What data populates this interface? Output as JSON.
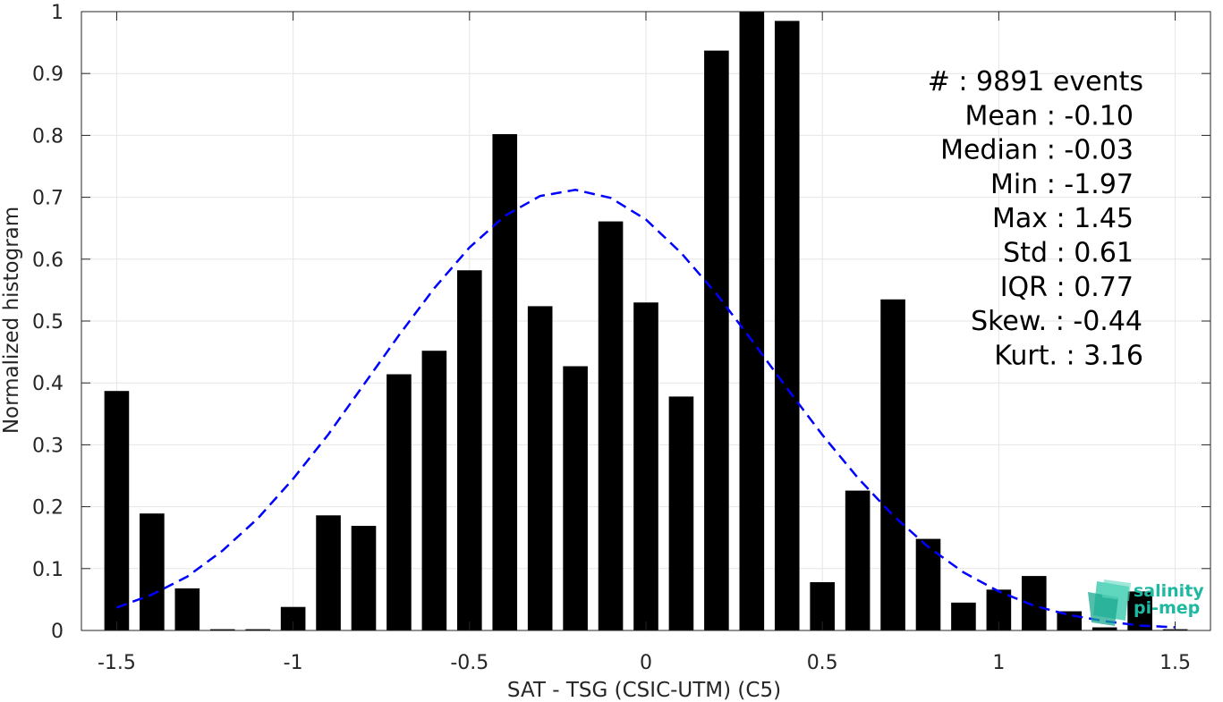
{
  "chart_data": {
    "type": "bar",
    "xlabel": "SAT - TSG (CSIC-UTM) (C5)",
    "ylabel": "Normalized histogram",
    "xlim": [
      -1.6,
      1.6
    ],
    "ylim": [
      0,
      1
    ],
    "grid": true,
    "xticks": [
      "-1.5",
      "-1",
      "-0.5",
      "0",
      "0.5",
      "1",
      "1.5"
    ],
    "yticks": [
      "0",
      "0.1",
      "0.2",
      "0.3",
      "0.4",
      "0.5",
      "0.6",
      "0.7",
      "0.8",
      "0.9",
      "1"
    ],
    "bar_width": 0.07,
    "bars": {
      "x": [
        -1.5,
        -1.4,
        -1.3,
        -1.2,
        -1.1,
        -1.0,
        -0.9,
        -0.8,
        -0.7,
        -0.6,
        -0.5,
        -0.4,
        -0.3,
        -0.2,
        -0.1,
        0.0,
        0.1,
        0.2,
        0.3,
        0.4,
        0.5,
        0.6,
        0.7,
        0.8,
        0.9,
        1.0,
        1.1,
        1.2,
        1.3,
        1.4,
        1.5
      ],
      "values": [
        0.387,
        0.189,
        0.068,
        0.002,
        0.002,
        0.038,
        0.186,
        0.169,
        0.414,
        0.452,
        0.582,
        0.802,
        0.524,
        0.427,
        0.661,
        0.53,
        0.378,
        0.937,
        1.0,
        0.985,
        0.078,
        0.226,
        0.535,
        0.148,
        0.045,
        0.066,
        0.088,
        0.031,
        0.005,
        0.063,
        0.002
      ],
      "color": "#000000"
    },
    "fit_curve": {
      "style": "dashed",
      "color": "#0000ff",
      "x": [
        -1.5,
        -1.4,
        -1.3,
        -1.2,
        -1.1,
        -1.0,
        -0.9,
        -0.8,
        -0.7,
        -0.6,
        -0.5,
        -0.4,
        -0.3,
        -0.2,
        -0.1,
        0.0,
        0.1,
        0.2,
        0.3,
        0.4,
        0.5,
        0.6,
        0.7,
        0.8,
        0.9,
        1.0,
        1.1,
        1.2,
        1.3,
        1.4,
        1.5
      ],
      "y": [
        0.037,
        0.058,
        0.087,
        0.129,
        0.181,
        0.245,
        0.317,
        0.397,
        0.477,
        0.553,
        0.619,
        0.67,
        0.702,
        0.712,
        0.699,
        0.664,
        0.61,
        0.544,
        0.469,
        0.391,
        0.316,
        0.247,
        0.186,
        0.135,
        0.094,
        0.063,
        0.04,
        0.025,
        0.015,
        0.008,
        0.005
      ]
    },
    "stats": [
      {
        "label": "#  : 9891 events"
      },
      {
        "label": "Mean : -0.10"
      },
      {
        "label": "Median : -0.03"
      },
      {
        "label": "Min : -1.97"
      },
      {
        "label": "Max : 1.45"
      },
      {
        "label": "Std : 0.61"
      },
      {
        "label": "IQR : 0.77"
      },
      {
        "label": "Skew. : -0.44"
      },
      {
        "label": "Kurt. : 3.16"
      }
    ]
  },
  "logo": {
    "line1": "salinity",
    "line2": "pi-mep",
    "color": "#1fb8a0"
  }
}
